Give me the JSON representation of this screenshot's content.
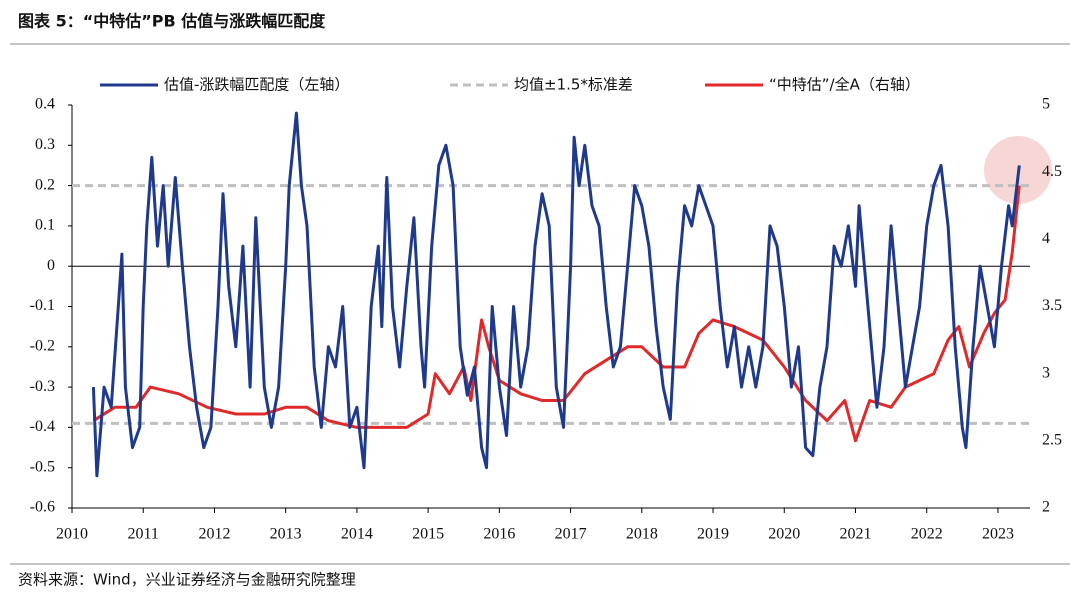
{
  "chart_data": {
    "type": "line",
    "title": "图表 5：“中特估”PB 估值与涨跌幅匹配度",
    "source": "资料来源：Wind，兴业证券经济与金融研究院整理",
    "xlim": [
      2010,
      2023.45
    ],
    "xticks": [
      2010,
      2011,
      2012,
      2013,
      2014,
      2015,
      2016,
      2017,
      2018,
      2019,
      2020,
      2021,
      2022,
      2023
    ],
    "ylim": [
      -0.6,
      0.4
    ],
    "yticks": [
      0.4,
      0.3,
      0.2,
      0.1,
      0,
      -0.1,
      -0.2,
      -0.3,
      -0.4,
      -0.5,
      -0.6
    ],
    "y2lim": [
      2,
      5
    ],
    "y2ticks": [
      5,
      4.5,
      4,
      3.5,
      3,
      2.5,
      2
    ],
    "legend": "top",
    "reference_lines": {
      "name": "均值±1.5*标准差",
      "color": "#bfbfbf",
      "values": [
        0.2,
        -0.39
      ]
    },
    "series": [
      {
        "name": "估值-涨跌幅匹配度（左轴）",
        "color": "#1f3a8c",
        "x": [
          2010.3,
          2010.35,
          2010.45,
          2010.55,
          2010.65,
          2010.7,
          2010.75,
          2010.85,
          2010.95,
          2011.0,
          2011.05,
          2011.12,
          2011.2,
          2011.28,
          2011.35,
          2011.45,
          2011.55,
          2011.65,
          2011.75,
          2011.85,
          2011.95,
          2012.05,
          2012.12,
          2012.2,
          2012.3,
          2012.4,
          2012.5,
          2012.58,
          2012.7,
          2012.8,
          2012.9,
          2013.0,
          2013.05,
          2013.15,
          2013.22,
          2013.3,
          2013.4,
          2013.5,
          2013.6,
          2013.7,
          2013.8,
          2013.9,
          2014.0,
          2014.1,
          2014.2,
          2014.3,
          2014.35,
          2014.42,
          2014.5,
          2014.6,
          2014.7,
          2014.8,
          2014.9,
          2014.95,
          2015.05,
          2015.15,
          2015.25,
          2015.35,
          2015.45,
          2015.55,
          2015.65,
          2015.75,
          2015.82,
          2015.9,
          2016.0,
          2016.1,
          2016.2,
          2016.3,
          2016.4,
          2016.5,
          2016.6,
          2016.7,
          2016.8,
          2016.9,
          2017.0,
          2017.05,
          2017.12,
          2017.2,
          2017.3,
          2017.4,
          2017.5,
          2017.6,
          2017.7,
          2017.8,
          2017.9,
          2018.0,
          2018.1,
          2018.2,
          2018.3,
          2018.4,
          2018.5,
          2018.6,
          2018.7,
          2018.8,
          2018.9,
          2019.0,
          2019.1,
          2019.2,
          2019.3,
          2019.4,
          2019.5,
          2019.6,
          2019.7,
          2019.8,
          2019.9,
          2020.0,
          2020.1,
          2020.2,
          2020.3,
          2020.4,
          2020.5,
          2020.6,
          2020.7,
          2020.8,
          2020.9,
          2021.0,
          2021.05,
          2021.1,
          2021.2,
          2021.3,
          2021.4,
          2021.5,
          2021.6,
          2021.7,
          2021.8,
          2021.9,
          2022.0,
          2022.1,
          2022.2,
          2022.3,
          2022.4,
          2022.5,
          2022.55,
          2022.65,
          2022.75,
          2022.85,
          2022.95,
          2023.05,
          2023.15,
          2023.2,
          2023.3
        ],
        "values": [
          -0.3,
          -0.52,
          -0.3,
          -0.35,
          -0.1,
          0.03,
          -0.3,
          -0.45,
          -0.4,
          -0.1,
          0.1,
          0.27,
          0.05,
          0.2,
          0.0,
          0.22,
          0.0,
          -0.2,
          -0.35,
          -0.45,
          -0.4,
          -0.1,
          0.18,
          -0.05,
          -0.2,
          0.05,
          -0.3,
          0.12,
          -0.3,
          -0.4,
          -0.3,
          0.0,
          0.2,
          0.38,
          0.2,
          0.1,
          -0.25,
          -0.4,
          -0.2,
          -0.25,
          -0.1,
          -0.4,
          -0.35,
          -0.5,
          -0.1,
          0.05,
          -0.15,
          0.22,
          -0.1,
          -0.25,
          -0.05,
          0.12,
          -0.2,
          -0.3,
          0.05,
          0.25,
          0.3,
          0.2,
          -0.2,
          -0.32,
          -0.25,
          -0.45,
          -0.5,
          -0.1,
          -0.3,
          -0.42,
          -0.1,
          -0.3,
          -0.2,
          0.05,
          0.18,
          0.1,
          -0.3,
          -0.4,
          0.0,
          0.32,
          0.2,
          0.3,
          0.15,
          0.1,
          -0.1,
          -0.25,
          -0.2,
          0.0,
          0.2,
          0.15,
          0.05,
          -0.15,
          -0.3,
          -0.38,
          -0.05,
          0.15,
          0.1,
          0.2,
          0.15,
          0.1,
          -0.1,
          -0.25,
          -0.15,
          -0.3,
          -0.2,
          -0.3,
          -0.2,
          0.1,
          0.05,
          -0.1,
          -0.3,
          -0.2,
          -0.45,
          -0.47,
          -0.3,
          -0.2,
          0.05,
          0.0,
          0.1,
          -0.05,
          0.15,
          0.05,
          -0.15,
          -0.35,
          -0.2,
          0.1,
          -0.1,
          -0.3,
          -0.2,
          -0.1,
          0.1,
          0.2,
          0.25,
          0.1,
          -0.2,
          -0.4,
          -0.45,
          -0.2,
          0.0,
          -0.1,
          -0.2,
          0.0,
          0.15,
          0.1,
          0.25
        ]
      },
      {
        "name": "“中特估”/全A（右轴）",
        "color": "#e02a2a",
        "axis": "y2",
        "x": [
          2010.3,
          2010.6,
          2010.9,
          2011.1,
          2011.5,
          2011.9,
          2012.3,
          2012.7,
          2013.0,
          2013.3,
          2013.6,
          2014.0,
          2014.3,
          2014.7,
          2015.0,
          2015.1,
          2015.3,
          2015.5,
          2015.6,
          2015.75,
          2015.85,
          2016.0,
          2016.3,
          2016.6,
          2016.9,
          2017.2,
          2017.5,
          2017.8,
          2018.0,
          2018.3,
          2018.6,
          2018.8,
          2019.0,
          2019.3,
          2019.7,
          2020.0,
          2020.3,
          2020.6,
          2020.85,
          2021.0,
          2021.2,
          2021.5,
          2021.7,
          2021.9,
          2022.1,
          2022.3,
          2022.45,
          2022.6,
          2022.8,
          2022.95,
          2023.1,
          2023.2,
          2023.3
        ],
        "values": [
          2.65,
          2.75,
          2.75,
          2.9,
          2.85,
          2.75,
          2.7,
          2.7,
          2.75,
          2.75,
          2.65,
          2.6,
          2.6,
          2.6,
          2.7,
          3.0,
          2.85,
          3.05,
          2.8,
          3.4,
          3.2,
          2.95,
          2.85,
          2.8,
          2.8,
          3.0,
          3.1,
          3.2,
          3.2,
          3.05,
          3.05,
          3.3,
          3.4,
          3.35,
          3.25,
          3.05,
          2.8,
          2.65,
          2.8,
          2.5,
          2.8,
          2.75,
          2.9,
          2.95,
          3.0,
          3.25,
          3.35,
          3.05,
          3.3,
          3.45,
          3.55,
          3.9,
          4.4
        ]
      }
    ]
  }
}
